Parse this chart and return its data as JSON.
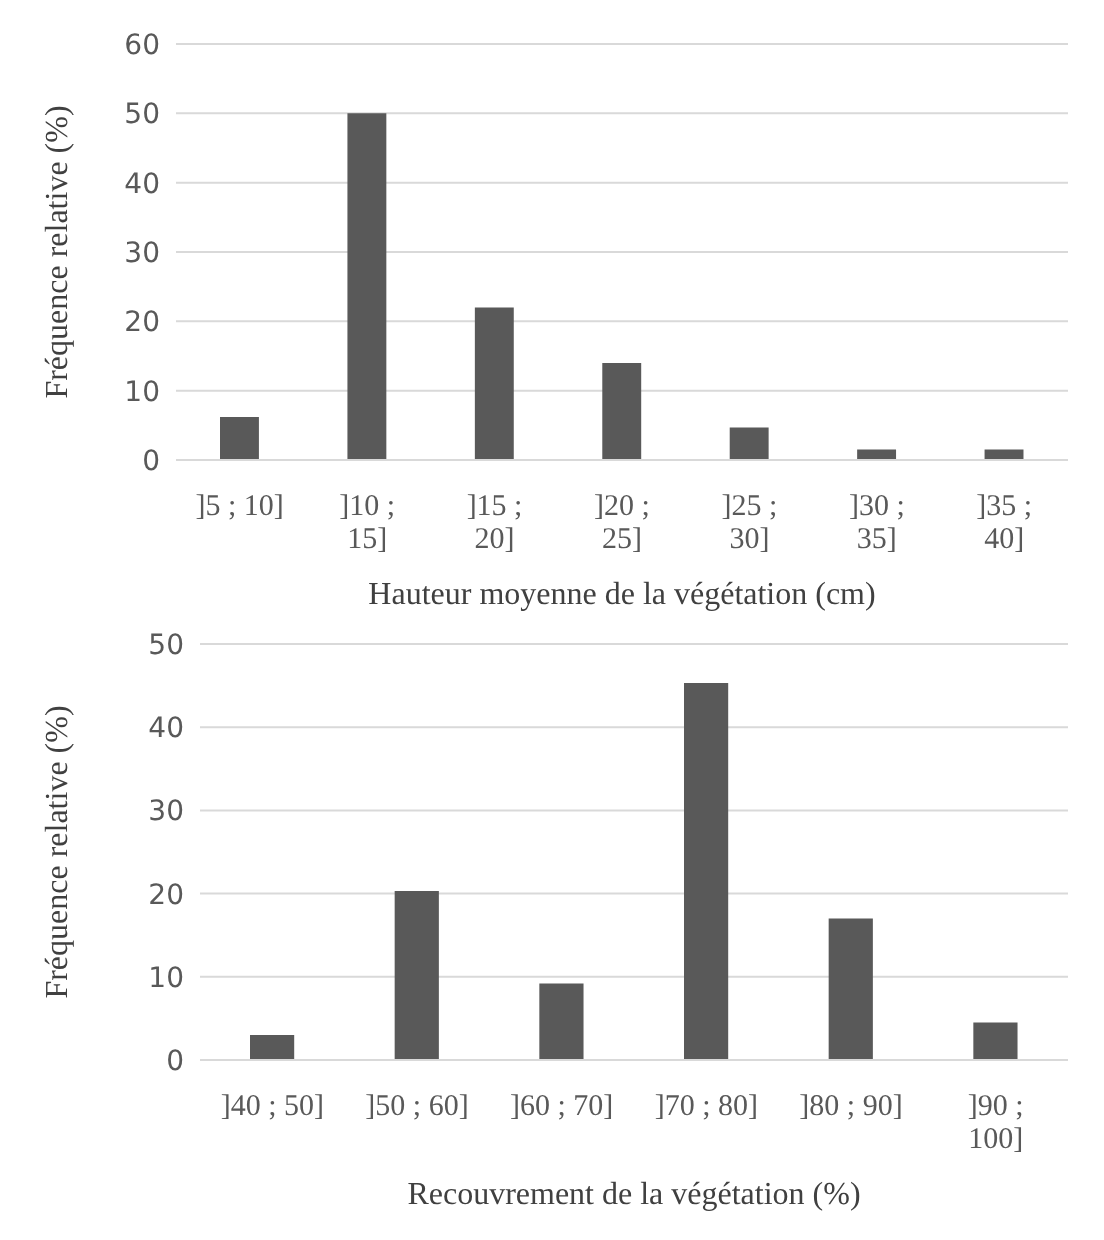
{
  "chart_data": [
    {
      "type": "bar",
      "categories": [
        "]5 ; 10]",
        "]10 ; 15]",
        "]15 ; 20]",
        "]20 ; 25]",
        "]25 ; 30]",
        "]30 ; 35]",
        "]35 ; 40]"
      ],
      "values": [
        6.2,
        50,
        22,
        14,
        4.7,
        1.5,
        1.5
      ],
      "color": "#595959",
      "xlabel": "Hauteur moyenne de la végétation (cm)",
      "ylabel": "Fréquence relative (%)",
      "ylim": [
        0,
        60
      ],
      "yticks": [
        0,
        10,
        20,
        30,
        40,
        50,
        60
      ],
      "grid": "y"
    },
    {
      "type": "bar",
      "categories": [
        "]40 ; 50]",
        "]50 ; 60]",
        "]60 ; 70]",
        "]70 ; 80]",
        "]80 ; 90]",
        "]90 ; 100]"
      ],
      "values": [
        3,
        20.3,
        9.2,
        45.3,
        17,
        4.5
      ],
      "color": "#595959",
      "xlabel": "Recouvrement  de la végétation (%)",
      "ylabel": "Fréquence relative (%)",
      "ylim": [
        0,
        50
      ],
      "yticks": [
        0,
        10,
        20,
        30,
        40,
        50
      ],
      "grid": "y"
    }
  ]
}
